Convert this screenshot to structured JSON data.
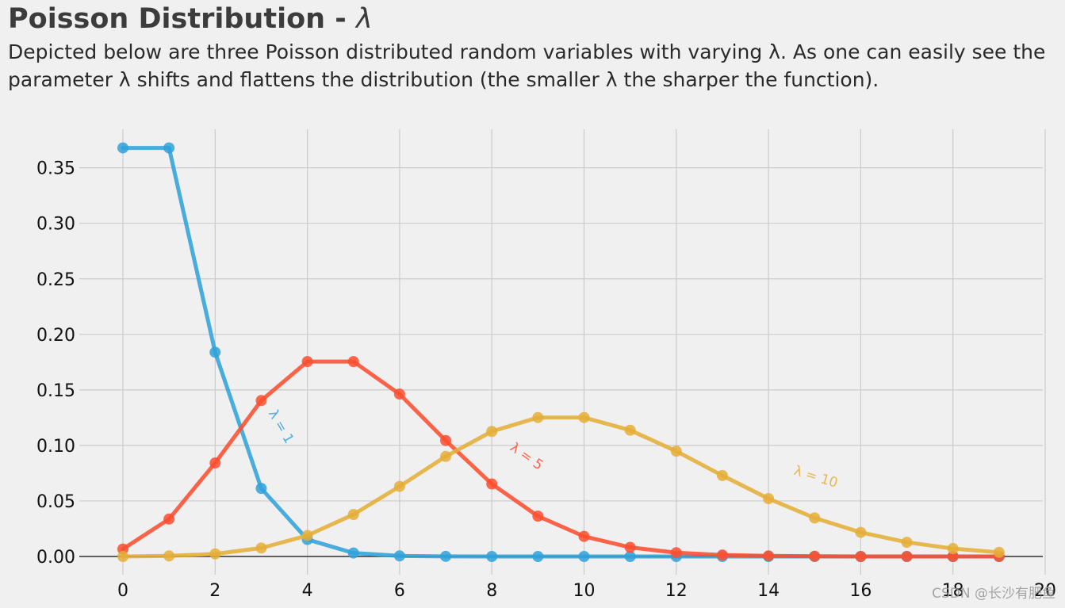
{
  "chart_data": {
    "type": "line",
    "title_main": "Poisson Distribution - ",
    "title_symbol": "λ",
    "subtitle": "Depicted below are three Poisson distributed random variables with varying λ. As one can easily see the parameter λ shifts and flattens the distribution (the smaller λ the sharper the function).",
    "xlabel": "",
    "ylabel": "",
    "xlim": [
      0,
      20
    ],
    "ylim": [
      0,
      0.37
    ],
    "x_ticks": [
      0,
      2,
      4,
      6,
      8,
      10,
      12,
      14,
      16,
      18,
      20
    ],
    "y_ticks": [
      "0.00",
      "0.05",
      "0.10",
      "0.15",
      "0.20",
      "0.25",
      "0.30",
      "0.35"
    ],
    "grid": true,
    "x": [
      0,
      1,
      2,
      3,
      4,
      5,
      6,
      7,
      8,
      9,
      10,
      11,
      12,
      13,
      14,
      15,
      16,
      17,
      18,
      19
    ],
    "series": [
      {
        "color": "#30a2da",
        "values": [
          0.3679,
          0.3679,
          0.1839,
          0.0613,
          0.0153,
          0.0031,
          0.0005,
          0.0001,
          0,
          0,
          0,
          0,
          0,
          0,
          0,
          0,
          0,
          0,
          0,
          0
        ]
      },
      {
        "color": "#fc4f30",
        "values": [
          0.0067,
          0.0337,
          0.0842,
          0.1404,
          0.1755,
          0.1755,
          0.1462,
          0.1044,
          0.0653,
          0.0363,
          0.0181,
          0.0082,
          0.0034,
          0.0013,
          0.0005,
          0.0002,
          0.0,
          0.0,
          0.0,
          0.0
        ]
      },
      {
        "color": "#e5ae38",
        "values": [
          0.0,
          0.0005,
          0.0023,
          0.0076,
          0.0189,
          0.0378,
          0.0631,
          0.0901,
          0.1126,
          0.1251,
          0.1251,
          0.1137,
          0.0948,
          0.0729,
          0.0521,
          0.0347,
          0.0217,
          0.0128,
          0.0071,
          0.0037
        ]
      }
    ],
    "annotations": [
      {
        "text": "λ = 1",
        "x": 3.35,
        "y": 0.115,
        "rotation": 60,
        "color": "#30a2da"
      },
      {
        "text": "λ = 5",
        "x": 8.7,
        "y": 0.087,
        "rotation": 35,
        "color": "#fc4f30"
      },
      {
        "text": "λ = 10",
        "x": 15.0,
        "y": 0.068,
        "rotation": 17,
        "color": "#e5ae38"
      }
    ]
  },
  "watermark": "CSDN @长沙有肥鱼"
}
